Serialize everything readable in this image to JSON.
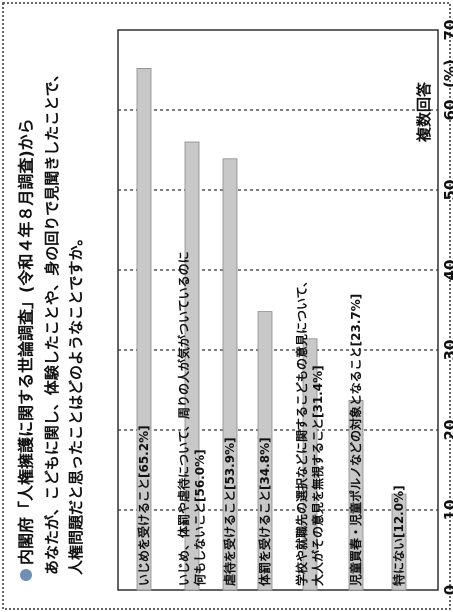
{
  "chart_data": {
    "type": "bar",
    "orientation": "horizontal",
    "title_lines": [
      "内閣府「人権擁護に関する世論調査」(令和４年８月調査)から",
      "あなたが、こどもに関し、体験したことや、身の回りで見聞きしたことで、",
      "人権問題だと思ったことはどのようなことですか。"
    ],
    "unit": "(%)",
    "note": "複数回答",
    "categories": [
      [
        "いじめを受けること[65.2%]"
      ],
      [
        "いじめ、体罰や虐待について、周りの人が気がついているのに",
        "何もしないこと[56.0%]"
      ],
      [
        "虐待を受けること[53.9%]"
      ],
      [
        "体罰を受けること[34.8%]"
      ],
      [
        "学校や就職先の選択などに関するこどもの意見について、",
        "大人がその意見を無視すること[31.4%]"
      ],
      [
        "児童買春・児童ポルノなどの対象となること[23.7%]"
      ],
      [
        "特にない[12.0%]"
      ]
    ],
    "values": [
      65.2,
      56.0,
      53.9,
      34.8,
      31.4,
      23.7,
      12.0
    ],
    "xlim": [
      0,
      70
    ],
    "ticks": [
      0,
      10,
      20,
      30,
      40,
      50,
      60,
      70
    ],
    "grid": "dashed",
    "bar_color": "#c8c8c8",
    "accent_color": "#6f8fb5"
  }
}
